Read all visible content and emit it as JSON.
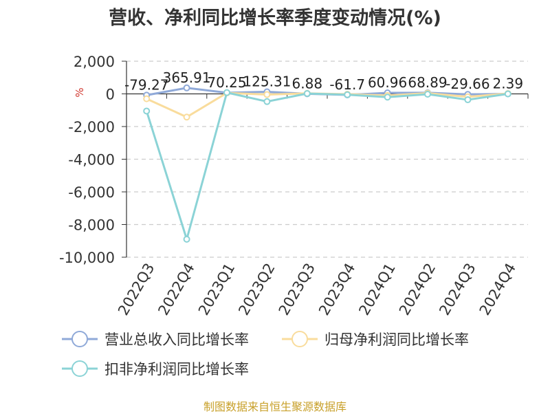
{
  "title": "营收、净利同比增长率季度变动情况(%)",
  "source": "制图数据来自恒生聚源数据库",
  "chart_data": {
    "type": "line",
    "title": "营收、净利同比增长率季度变动情况(%)",
    "categories": [
      "2022Q3",
      "2022Q4",
      "2023Q1",
      "2023Q2",
      "2023Q3",
      "2023Q4",
      "2024Q1",
      "2024Q2",
      "2024Q3",
      "2024Q4"
    ],
    "ylim": [
      -10000,
      2000
    ],
    "yticks": [
      2000,
      0,
      -2000,
      -4000,
      -6000,
      -8000,
      -10000
    ],
    "ytick_labels": [
      "2,000",
      "0",
      "-2,000",
      "-4,000",
      "-6,000",
      "-8,000",
      "-10,000"
    ],
    "ylabel": "%",
    "grid": true,
    "legend_position": "bottom-left",
    "series": [
      {
        "name": "营业总收入同比增长率",
        "color": "#8fa9d8",
        "values": [
          -79.27,
          365.91,
          70.25,
          125.31,
          6.88,
          -61.7,
          60.96,
          68.89,
          -29.66,
          2.39
        ],
        "data_labels": [
          "-79.27",
          "365.91",
          "70.25",
          "125.31",
          "6.88",
          "-61.7",
          "60.96",
          "68.89",
          "-29.66",
          "2.39"
        ]
      },
      {
        "name": "归母净利润同比增长率",
        "color": "#f9dc9c",
        "values": [
          -300,
          -1420,
          60,
          -40,
          30,
          -20,
          -100,
          40,
          -180,
          20
        ]
      },
      {
        "name": "扣非净利润同比增长率",
        "color": "#8bd3d6",
        "values": [
          -1050,
          -8900,
          80,
          -470,
          20,
          -50,
          -200,
          -20,
          -360,
          0
        ]
      }
    ]
  }
}
